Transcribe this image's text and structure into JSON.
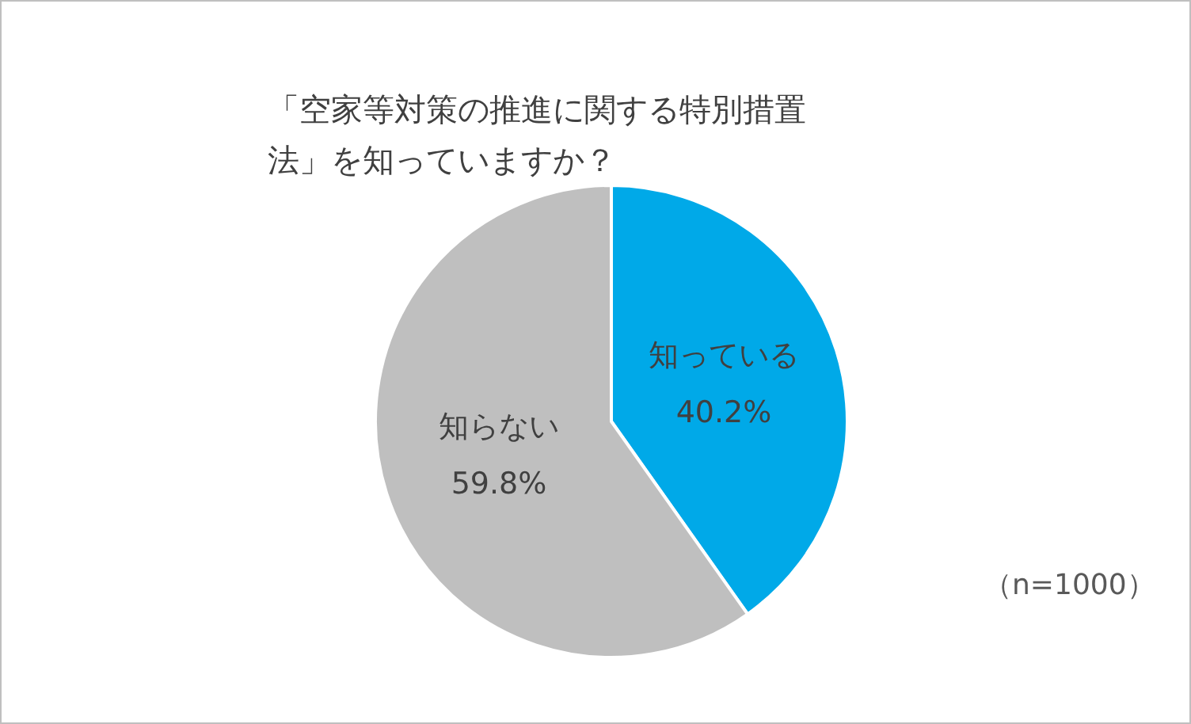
{
  "chart_data": {
    "type": "pie",
    "title": "「空家等対策の推進に関する特別措置法」を知っていますか？",
    "categories": [
      "知っている",
      "知らない"
    ],
    "values": [
      40.2,
      59.8
    ],
    "value_labels": [
      "40.2%",
      "59.8%"
    ],
    "colors": [
      "#00a9e8",
      "#bfbfbf"
    ],
    "legend": false,
    "annotations": [
      "（n=1000）"
    ]
  }
}
